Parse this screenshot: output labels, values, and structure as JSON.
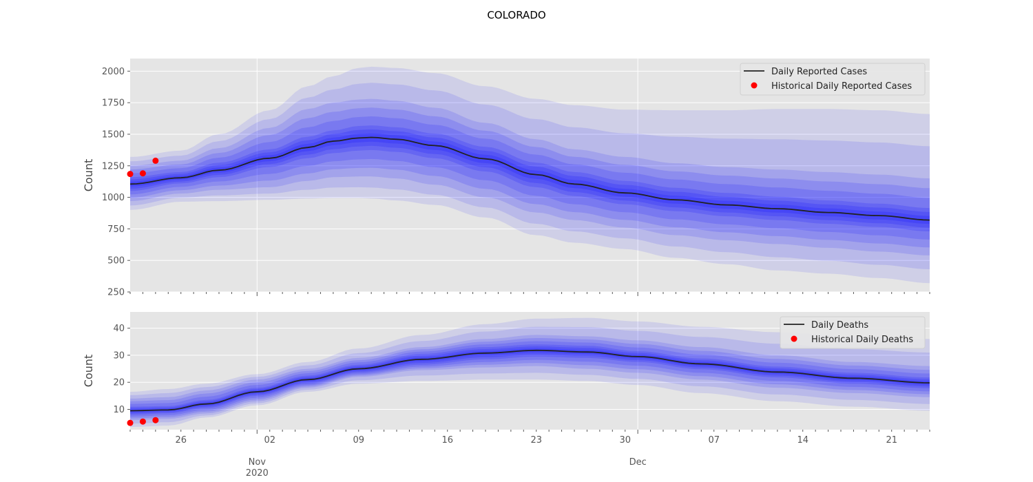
{
  "title": "COLORADO",
  "x_tick_labels": {
    "days": [
      "26",
      "02",
      "09",
      "16",
      "23",
      "30",
      "07",
      "14",
      "21"
    ],
    "months": [
      {
        "label": "Nov",
        "sub": "2020"
      },
      {
        "label": "Dec",
        "sub": ""
      }
    ]
  },
  "colors": {
    "plot_bg": "#e5e5e5",
    "grid": "#ffffff",
    "band": "#1010ff",
    "median_line": "#222222",
    "historical_points": "#ff0000"
  },
  "chart_data": [
    {
      "type": "area",
      "x_type": "date",
      "x_range": [
        "2020-10-22",
        "2020-12-24"
      ],
      "ylabel": "Count",
      "ylim": [
        250,
        2100
      ],
      "y_ticks": [
        250,
        500,
        750,
        1000,
        1250,
        1500,
        1750,
        2000
      ],
      "grid": true,
      "legend_position": "top-right",
      "legend": [
        "Daily Reported Cases",
        "Historical Daily Reported Cases"
      ],
      "series": [
        {
          "name": "Daily Reported Cases",
          "kind": "median-line",
          "points": [
            [
              "2020-10-22",
              1105
            ],
            [
              "2020-10-26",
              1155
            ],
            [
              "2020-10-29",
              1215
            ],
            [
              "2020-11-02",
              1310
            ],
            [
              "2020-11-05",
              1395
            ],
            [
              "2020-11-07",
              1445
            ],
            [
              "2020-11-09",
              1470
            ],
            [
              "2020-11-10",
              1475
            ],
            [
              "2020-11-12",
              1460
            ],
            [
              "2020-11-15",
              1410
            ],
            [
              "2020-11-19",
              1305
            ],
            [
              "2020-11-23",
              1180
            ],
            [
              "2020-11-26",
              1105
            ],
            [
              "2020-11-30",
              1035
            ],
            [
              "2020-12-04",
              980
            ],
            [
              "2020-12-08",
              940
            ],
            [
              "2020-12-12",
              910
            ],
            [
              "2020-12-16",
              880
            ],
            [
              "2020-12-20",
              855
            ],
            [
              "2020-12-24",
              820
            ]
          ]
        },
        {
          "name": "Historical Daily Reported Cases",
          "kind": "scatter",
          "points": [
            [
              "2020-10-22",
              1185
            ],
            [
              "2020-10-23",
              1190
            ],
            [
              "2020-10-24",
              1290
            ]
          ]
        },
        {
          "kind": "band",
          "level": "outer",
          "points": [
            [
              "2020-10-22",
              900,
              1320
            ],
            [
              "2020-10-26",
              965,
              1370
            ],
            [
              "2020-10-29",
              970,
              1500
            ],
            [
              "2020-11-02",
              980,
              1690
            ],
            [
              "2020-11-05",
              990,
              1880
            ],
            [
              "2020-11-07",
              995,
              1960
            ],
            [
              "2020-11-09",
              995,
              2025
            ],
            [
              "2020-11-10",
              990,
              2035
            ],
            [
              "2020-11-12",
              975,
              2025
            ],
            [
              "2020-11-15",
              940,
              1985
            ],
            [
              "2020-11-19",
              840,
              1880
            ],
            [
              "2020-11-23",
              700,
              1780
            ],
            [
              "2020-11-26",
              640,
              1730
            ],
            [
              "2020-11-30",
              590,
              1695
            ],
            [
              "2020-12-04",
              520,
              1690
            ],
            [
              "2020-12-08",
              470,
              1690
            ],
            [
              "2020-12-12",
              420,
              1700
            ],
            [
              "2020-12-16",
              395,
              1700
            ],
            [
              "2020-12-20",
              360,
              1690
            ],
            [
              "2020-12-24",
              320,
              1660
            ]
          ]
        },
        {
          "kind": "band",
          "level": "middle",
          "points": [
            [
              "2020-10-22",
              970,
              1250
            ],
            [
              "2020-10-26",
              1030,
              1290
            ],
            [
              "2020-10-29",
              1060,
              1390
            ],
            [
              "2020-11-02",
              1080,
              1550
            ],
            [
              "2020-11-05",
              1130,
              1700
            ],
            [
              "2020-11-07",
              1160,
              1750
            ],
            [
              "2020-11-09",
              1165,
              1775
            ],
            [
              "2020-11-10",
              1165,
              1780
            ],
            [
              "2020-11-12",
              1150,
              1765
            ],
            [
              "2020-11-15",
              1100,
              1710
            ],
            [
              "2020-11-19",
              1000,
              1590
            ],
            [
              "2020-11-23",
              880,
              1460
            ],
            [
              "2020-11-26",
              820,
              1380
            ],
            [
              "2020-11-30",
              760,
              1320
            ],
            [
              "2020-12-04",
              700,
              1270
            ],
            [
              "2020-12-08",
              660,
              1240
            ],
            [
              "2020-12-12",
              630,
              1220
            ],
            [
              "2020-12-16",
              600,
              1200
            ],
            [
              "2020-12-20",
              570,
              1180
            ],
            [
              "2020-12-24",
              540,
              1150
            ]
          ]
        },
        {
          "kind": "band",
          "level": "inner",
          "points": [
            [
              "2020-10-22",
              1050,
              1160
            ],
            [
              "2020-10-26",
              1110,
              1200
            ],
            [
              "2020-10-29",
              1160,
              1275
            ],
            [
              "2020-11-02",
              1240,
              1380
            ],
            [
              "2020-11-05",
              1310,
              1480
            ],
            [
              "2020-11-07",
              1350,
              1530
            ],
            [
              "2020-11-09",
              1370,
              1565
            ],
            [
              "2020-11-10",
              1375,
              1570
            ],
            [
              "2020-11-12",
              1360,
              1555
            ],
            [
              "2020-11-15",
              1310,
              1505
            ],
            [
              "2020-11-19",
              1205,
              1400
            ],
            [
              "2020-11-23",
              1080,
              1275
            ],
            [
              "2020-11-26",
              1010,
              1200
            ],
            [
              "2020-11-30",
              945,
              1130
            ],
            [
              "2020-12-04",
              890,
              1075
            ],
            [
              "2020-12-08",
              850,
              1035
            ],
            [
              "2020-12-12",
              820,
              1005
            ],
            [
              "2020-12-16",
              790,
              975
            ],
            [
              "2020-12-20",
              765,
              950
            ],
            [
              "2020-12-24",
              730,
              915
            ]
          ]
        }
      ]
    },
    {
      "type": "area",
      "x_type": "date",
      "x_range": [
        "2020-10-22",
        "2020-12-24"
      ],
      "xlabel": "",
      "ylabel": "Count",
      "ylim": [
        2.5,
        46
      ],
      "y_ticks": [
        10,
        20,
        30,
        40
      ],
      "grid": true,
      "legend_position": "top-right",
      "legend": [
        "Daily Deaths",
        "Historical Daily Deaths"
      ],
      "series": [
        {
          "name": "Daily Deaths",
          "kind": "median-line",
          "points": [
            [
              "2020-10-22",
              9.5
            ],
            [
              "2020-10-25",
              9.8
            ],
            [
              "2020-10-28",
              12
            ],
            [
              "2020-11-01",
              16.5
            ],
            [
              "2020-11-05",
              21
            ],
            [
              "2020-11-09",
              25
            ],
            [
              "2020-11-14",
              28.5
            ],
            [
              "2020-11-19",
              30.8
            ],
            [
              "2020-11-23",
              31.8
            ],
            [
              "2020-11-27",
              31.2
            ],
            [
              "2020-12-01",
              29.5
            ],
            [
              "2020-12-06",
              26.8
            ],
            [
              "2020-12-12",
              23.8
            ],
            [
              "2020-12-18",
              21.5
            ],
            [
              "2020-12-24",
              19.8
            ]
          ]
        },
        {
          "name": "Historical Daily Deaths",
          "kind": "scatter",
          "points": [
            [
              "2020-10-22",
              5
            ],
            [
              "2020-10-23",
              5.5
            ],
            [
              "2020-10-24",
              6
            ]
          ]
        },
        {
          "kind": "band",
          "level": "outer",
          "points": [
            [
              "2020-10-22",
              3.5,
              16.5
            ],
            [
              "2020-10-25",
              4,
              17.5
            ],
            [
              "2020-10-28",
              7,
              19.5
            ],
            [
              "2020-11-01",
              11.5,
              23
            ],
            [
              "2020-11-05",
              16.5,
              27.5
            ],
            [
              "2020-11-09",
              19.5,
              32.5
            ],
            [
              "2020-11-14",
              20.5,
              37.5
            ],
            [
              "2020-11-19",
              21,
              41.5
            ],
            [
              "2020-11-23",
              21,
              43.5
            ],
            [
              "2020-11-27",
              20.5,
              43.8
            ],
            [
              "2020-12-01",
              19,
              42.5
            ],
            [
              "2020-12-06",
              16,
              40.5
            ],
            [
              "2020-12-12",
              13,
              38.5
            ],
            [
              "2020-12-18",
              11,
              37
            ],
            [
              "2020-12-24",
              9.5,
              36
            ]
          ]
        },
        {
          "kind": "band",
          "level": "middle",
          "points": [
            [
              "2020-10-22",
              6,
              14
            ],
            [
              "2020-10-25",
              6.5,
              14.5
            ],
            [
              "2020-10-28",
              8.5,
              17
            ],
            [
              "2020-11-01",
              13,
              21
            ],
            [
              "2020-11-05",
              18,
              25
            ],
            [
              "2020-11-09",
              22,
              29
            ],
            [
              "2020-11-14",
              24.5,
              33
            ],
            [
              "2020-11-19",
              25.5,
              36
            ],
            [
              "2020-11-23",
              26,
              37.5
            ],
            [
              "2020-11-27",
              25,
              37
            ],
            [
              "2020-12-01",
              23.5,
              35.5
            ],
            [
              "2020-12-06",
              21,
              33
            ],
            [
              "2020-12-12",
              18,
              30
            ],
            [
              "2020-12-18",
              16,
              27.5
            ],
            [
              "2020-12-24",
              14.5,
              26
            ]
          ]
        },
        {
          "kind": "band",
          "level": "inner",
          "points": [
            [
              "2020-10-22",
              8,
              11
            ],
            [
              "2020-10-25",
              8.5,
              11.2
            ],
            [
              "2020-10-28",
              10.5,
              13.5
            ],
            [
              "2020-11-01",
              15,
              18
            ],
            [
              "2020-11-05",
              19.5,
              22.5
            ],
            [
              "2020-11-09",
              23.5,
              26.5
            ],
            [
              "2020-11-14",
              26.5,
              30.5
            ],
            [
              "2020-11-19",
              28.5,
              33
            ],
            [
              "2020-11-23",
              29.5,
              34
            ],
            [
              "2020-11-27",
              29,
              33.5
            ],
            [
              "2020-12-01",
              27.5,
              31.5
            ],
            [
              "2020-12-06",
              24.8,
              28.8
            ],
            [
              "2020-12-12",
              21.8,
              25.8
            ],
            [
              "2020-12-18",
              19.5,
              23.5
            ],
            [
              "2020-12-24",
              17.8,
              21.8
            ]
          ]
        }
      ]
    }
  ]
}
